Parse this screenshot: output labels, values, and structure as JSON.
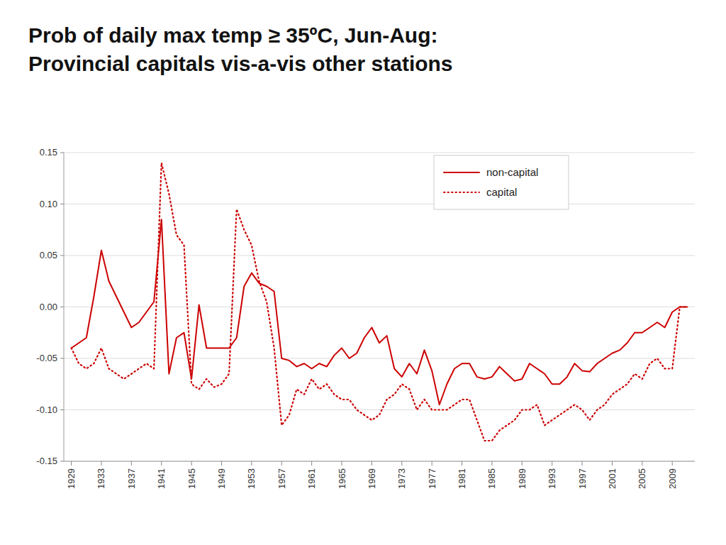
{
  "chart_data": {
    "type": "line",
    "title": "Prob of daily max temp ≥ 35ºC, Jun-Aug:",
    "subtitle": "Provincial capitals vis-a-vis other stations",
    "x": [
      1929,
      1930,
      1931,
      1932,
      1933,
      1934,
      1935,
      1936,
      1937,
      1938,
      1939,
      1940,
      1941,
      1942,
      1943,
      1944,
      1945,
      1946,
      1947,
      1948,
      1949,
      1950,
      1951,
      1952,
      1953,
      1954,
      1955,
      1956,
      1957,
      1958,
      1959,
      1960,
      1961,
      1962,
      1963,
      1964,
      1965,
      1966,
      1967,
      1968,
      1969,
      1970,
      1971,
      1972,
      1973,
      1974,
      1975,
      1976,
      1977,
      1978,
      1979,
      1980,
      1981,
      1982,
      1983,
      1984,
      1985,
      1986,
      1987,
      1988,
      1989,
      1990,
      1991,
      1992,
      1993,
      1994,
      1995,
      1996,
      1997,
      1998,
      1999,
      2000,
      2001,
      2002,
      2003,
      2004,
      2005,
      2006,
      2007,
      2008,
      2009,
      2010,
      2011
    ],
    "series": [
      {
        "name": "non-capital",
        "color": "#cc0000",
        "line_style": "solid",
        "values": [
          -0.04,
          -0.035,
          -0.03,
          0.01,
          0.055,
          0.025,
          0.01,
          -0.005,
          -0.02,
          -0.015,
          -0.005,
          0.005,
          0.085,
          -0.065,
          -0.03,
          -0.025,
          -0.07,
          0.002,
          -0.04,
          -0.04,
          -0.04,
          -0.04,
          -0.03,
          0.02,
          0.033,
          0.023,
          0.02,
          0.015,
          -0.05,
          -0.052,
          -0.058,
          -0.055,
          -0.06,
          -0.055,
          -0.058,
          -0.047,
          -0.04,
          -0.05,
          -0.045,
          -0.03,
          -0.02,
          -0.035,
          -0.028,
          -0.06,
          -0.068,
          -0.055,
          -0.065,
          -0.042,
          -0.062,
          -0.095,
          -0.075,
          -0.06,
          -0.055,
          -0.055,
          -0.068,
          -0.07,
          -0.068,
          -0.058,
          -0.065,
          -0.072,
          -0.07,
          -0.055,
          -0.06,
          -0.065,
          -0.075,
          -0.075,
          -0.068,
          -0.055,
          -0.062,
          -0.063,
          -0.055,
          -0.05,
          -0.045,
          -0.042,
          -0.035,
          -0.025,
          -0.025,
          -0.02,
          -0.015,
          -0.02,
          -0.005,
          0.0,
          0.0
        ]
      },
      {
        "name": "capital",
        "color": "#cc0000",
        "line_style": "dotted",
        "values": [
          -0.04,
          -0.055,
          -0.06,
          -0.055,
          -0.04,
          -0.06,
          -0.065,
          -0.07,
          -0.065,
          -0.06,
          -0.055,
          -0.06,
          0.14,
          0.11,
          0.07,
          0.06,
          -0.075,
          -0.08,
          -0.07,
          -0.078,
          -0.075,
          -0.065,
          0.095,
          0.075,
          0.06,
          0.025,
          0.005,
          -0.04,
          -0.115,
          -0.105,
          -0.08,
          -0.085,
          -0.07,
          -0.08,
          -0.075,
          -0.085,
          -0.09,
          -0.09,
          -0.1,
          -0.105,
          -0.11,
          -0.105,
          -0.09,
          -0.085,
          -0.075,
          -0.08,
          -0.1,
          -0.09,
          -0.1,
          -0.1,
          -0.1,
          -0.095,
          -0.09,
          -0.09,
          -0.11,
          -0.13,
          -0.13,
          -0.12,
          -0.115,
          -0.11,
          -0.1,
          -0.1,
          -0.095,
          -0.115,
          -0.11,
          -0.105,
          -0.1,
          -0.095,
          -0.1,
          -0.11,
          -0.1,
          -0.095,
          -0.085,
          -0.08,
          -0.075,
          -0.065,
          -0.07,
          -0.055,
          -0.05,
          -0.06,
          -0.06,
          0.0,
          0.0
        ]
      }
    ],
    "xlim": [
      1928,
      2012
    ],
    "xticks": [
      1929,
      1933,
      1937,
      1941,
      1945,
      1949,
      1953,
      1957,
      1961,
      1965,
      1969,
      1973,
      1977,
      1981,
      1985,
      1989,
      1993,
      1997,
      2001,
      2005,
      2009
    ],
    "ylim": [
      -0.15,
      0.15
    ],
    "yticks": [
      -0.15,
      {
        "value": -0.1,
        "label": "-0.10"
      },
      -0.05,
      {
        "value": 0.0,
        "label": "0.00"
      },
      0.05,
      {
        "value": 0.1,
        "label": "0.10"
      },
      0.15
    ],
    "grid": true,
    "legend": "upper right"
  }
}
